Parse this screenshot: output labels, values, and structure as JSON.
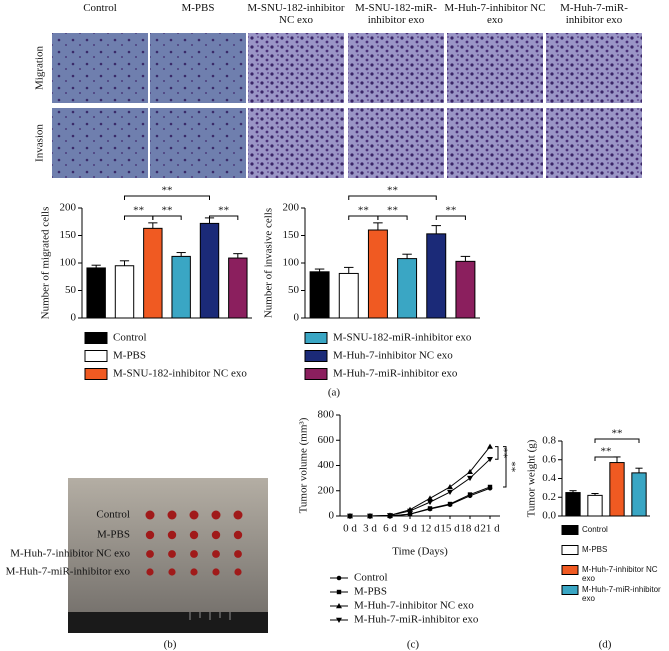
{
  "figure": {
    "columns": [
      "Control",
      "M-PBS",
      "M-SNU-182-inhibitor NC exo",
      "M-SNU-182-miR-inhibitor exo",
      "M-Huh-7-inhibitor NC exo",
      "M-Huh-7-miR-inhibitor exo"
    ],
    "rows": [
      "Migration",
      "Invasion"
    ],
    "panels": [
      "(a)",
      "(b)",
      "(c)",
      "(d)"
    ],
    "photo_labels": [
      "Control",
      "M-PBS",
      "M-Huh-7-inhibitor NC exo",
      "M-Huh-7-miR-inhibitor exo"
    ]
  },
  "chart_data": [
    {
      "type": "bar",
      "ylabel": "Number of migrated cells",
      "categories": [
        "Control",
        "M-PBS",
        "M-SNU-182-inhibitor NC exo",
        "M-SNU-182-miR-inhibitor exo",
        "M-Huh-7-inhibitor NC exo",
        "M-Huh-7-miR-inhibitor exo"
      ],
      "colors": [
        "#000000",
        "#ffffff",
        "#f05a22",
        "#3aa6c4",
        "#1b2a78",
        "#8b1f5e"
      ],
      "values": [
        91,
        95,
        163,
        112,
        172,
        109
      ],
      "errors": [
        5,
        9,
        10,
        7,
        10,
        8
      ],
      "ylim": [
        0,
        200
      ],
      "yticks": [
        0,
        50,
        100,
        150,
        200
      ],
      "annotations": [
        "**",
        "**",
        "**",
        "**"
      ]
    },
    {
      "type": "bar",
      "ylabel": "Number of invasive cells",
      "categories": [
        "Control",
        "M-PBS",
        "M-SNU-182-inhibitor NC exo",
        "M-SNU-182-miR-inhibitor exo",
        "M-Huh-7-inhibitor NC exo",
        "M-Huh-7-miR-inhibitor exo"
      ],
      "colors": [
        "#000000",
        "#ffffff",
        "#f05a22",
        "#3aa6c4",
        "#1b2a78",
        "#8b1f5e"
      ],
      "values": [
        84,
        81,
        160,
        108,
        153,
        103
      ],
      "errors": [
        5,
        11,
        13,
        8,
        15,
        9
      ],
      "ylim": [
        0,
        200
      ],
      "yticks": [
        0,
        50,
        100,
        150,
        200
      ],
      "annotations": [
        "**",
        "**",
        "**",
        "**"
      ]
    },
    {
      "type": "line",
      "ylabel": "Tumor volume (mm³)",
      "xlabel": "Time (Days)",
      "categories": [
        "0 d",
        "3 d",
        "6 d",
        "9 d",
        "12 d",
        "15 d",
        "18 d",
        "21 d"
      ],
      "series": [
        {
          "name": "Control",
          "color": "#000000",
          "marker": "circle",
          "values": [
            0,
            0,
            0,
            15,
            55,
            90,
            160,
            220
          ]
        },
        {
          "name": "M-PBS",
          "color": "#000000",
          "marker": "square",
          "values": [
            0,
            0,
            0,
            15,
            60,
            95,
            170,
            230
          ]
        },
        {
          "name": "M-Huh-7-inhibitor NC exo",
          "color": "#000000",
          "marker": "triangle-up",
          "values": [
            0,
            0,
            5,
            50,
            140,
            230,
            350,
            550
          ]
        },
        {
          "name": "M-Huh-7-miR-inhibitor exo",
          "color": "#000000",
          "marker": "triangle-down",
          "values": [
            0,
            0,
            5,
            40,
            110,
            190,
            300,
            450
          ]
        }
      ],
      "ylim": [
        0,
        800
      ],
      "yticks": [
        0,
        200,
        400,
        600,
        800
      ],
      "annotations": [
        "**",
        "**"
      ]
    },
    {
      "type": "bar",
      "ylabel": "Tumor weight (g)",
      "categories": [
        "Control",
        "M-PBS",
        "M-Huh-7-inhibitor NC exo",
        "M-Huh-7-miR-inhibitor exo"
      ],
      "colors": [
        "#000000",
        "#ffffff",
        "#f05a22",
        "#3aa6c4"
      ],
      "values": [
        0.25,
        0.22,
        0.57,
        0.46
      ],
      "errors": [
        0.02,
        0.02,
        0.06,
        0.05
      ],
      "ylim": [
        0,
        0.8
      ],
      "yticks": [
        {
          "value": 0,
          "label": "0.0"
        },
        0.2,
        0.4,
        0.6,
        0.8
      ],
      "annotations": [
        "**",
        "**"
      ]
    }
  ]
}
